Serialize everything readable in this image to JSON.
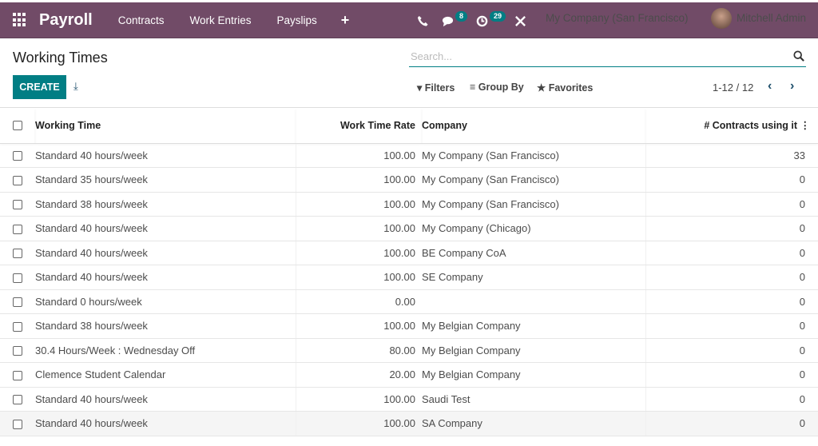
{
  "nav": {
    "app": "Payroll",
    "menu": [
      "Contracts",
      "Work Entries",
      "Payslips"
    ],
    "messages_count": "8",
    "activities_count": "29",
    "company": "My Company (San Francisco)",
    "user": "Mitchell Admin"
  },
  "page": {
    "title": "Working Times",
    "search_placeholder": "Search...",
    "create": "CREATE",
    "filters": "Filters",
    "group_by": "Group By",
    "favorites": "Favorites",
    "pager": "1-12 / 12"
  },
  "columns": {
    "name": "Working Time",
    "rate": "Work Time Rate",
    "company": "Company",
    "contracts": "# Contracts using it"
  },
  "rows": [
    {
      "name": "Standard 40 hours/week",
      "rate": "100.00",
      "company": "My Company (San Francisco)",
      "contracts": "33"
    },
    {
      "name": "Standard 35 hours/week",
      "rate": "100.00",
      "company": "My Company (San Francisco)",
      "contracts": "0"
    },
    {
      "name": "Standard 38 hours/week",
      "rate": "100.00",
      "company": "My Company (San Francisco)",
      "contracts": "0"
    },
    {
      "name": "Standard 40 hours/week",
      "rate": "100.00",
      "company": "My Company (Chicago)",
      "contracts": "0"
    },
    {
      "name": "Standard 40 hours/week",
      "rate": "100.00",
      "company": "BE Company CoA",
      "contracts": "0"
    },
    {
      "name": "Standard 40 hours/week",
      "rate": "100.00",
      "company": "SE Company",
      "contracts": "0"
    },
    {
      "name": "Standard 0 hours/week",
      "rate": "0.00",
      "company": "",
      "contracts": "0"
    },
    {
      "name": "Standard 38 hours/week",
      "rate": "100.00",
      "company": "My Belgian Company",
      "contracts": "0"
    },
    {
      "name": "30.4 Hours/Week : Wednesday Off",
      "rate": "80.00",
      "company": "My Belgian Company",
      "contracts": "0"
    },
    {
      "name": "Clemence Student Calendar",
      "rate": "20.00",
      "company": "My Belgian Company",
      "contracts": "0"
    },
    {
      "name": "Standard 40 hours/week",
      "rate": "100.00",
      "company": "Saudi Test",
      "contracts": "0"
    },
    {
      "name": "Standard 40 hours/week",
      "rate": "100.00",
      "company": "SA Company",
      "contracts": "0"
    }
  ],
  "colors": {
    "brand": "#714b67",
    "primary": "#017e84"
  }
}
